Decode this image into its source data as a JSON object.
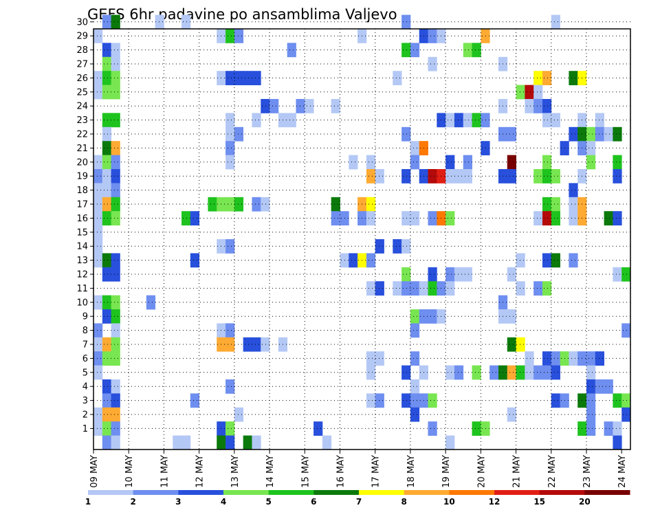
{
  "chart_data": {
    "type": "heatmap",
    "title": "GEFS 6hr padavine po ansamblima Valjevo",
    "xlabel": "",
    "ylabel": "",
    "x_ticks": [
      "09 MAY",
      "10 MAY",
      "11 MAY",
      "12 MAY",
      "13 MAY",
      "14 MAY",
      "15 MAY",
      "16 MAY",
      "17 MAY",
      "18 MAY",
      "19 MAY",
      "20 MAY",
      "21 MAY",
      "22 MAY",
      "23 MAY",
      "24 MAY"
    ],
    "y_ticks": [
      1,
      2,
      3,
      4,
      5,
      6,
      7,
      8,
      9,
      10,
      11,
      12,
      13,
      14,
      15,
      16,
      17,
      18,
      19,
      20,
      21,
      22,
      23,
      24,
      25,
      26,
      27,
      28,
      29,
      30
    ],
    "x_range": [
      0,
      61
    ],
    "y_range": [
      0,
      30
    ],
    "grid": true,
    "colorbar": {
      "labels": [
        "1",
        "2",
        "3",
        "4",
        "5",
        "6",
        "7",
        "8",
        "10",
        "12",
        "15",
        "20"
      ],
      "colors": [
        "#b4c8f5",
        "#6e8ef0",
        "#2850dc",
        "#78e650",
        "#1ec31e",
        "#0b7a0b",
        "#ffff00",
        "#ffaa32",
        "#ff7800",
        "#e11e14",
        "#b40a0a",
        "#780000"
      ]
    },
    "cells": [
      [
        1,
        30,
        2
      ],
      [
        2,
        30,
        6
      ],
      [
        7,
        30,
        1
      ],
      [
        10,
        30,
        1
      ],
      [
        35,
        30,
        2
      ],
      [
        52,
        30,
        1
      ],
      [
        0,
        29,
        1
      ],
      [
        14,
        29,
        1
      ],
      [
        15,
        29,
        5
      ],
      [
        16,
        29,
        2
      ],
      [
        30,
        29,
        1
      ],
      [
        37,
        29,
        3
      ],
      [
        38,
        29,
        2
      ],
      [
        39,
        29,
        1
      ],
      [
        44,
        29,
        8
      ],
      [
        1,
        28,
        3
      ],
      [
        2,
        28,
        1
      ],
      [
        22,
        28,
        2
      ],
      [
        35,
        28,
        5
      ],
      [
        36,
        28,
        2
      ],
      [
        42,
        28,
        4
      ],
      [
        43,
        28,
        5
      ],
      [
        1,
        27,
        4
      ],
      [
        2,
        27,
        1
      ],
      [
        38,
        27,
        1
      ],
      [
        46,
        27,
        1
      ],
      [
        0,
        26,
        1
      ],
      [
        1,
        26,
        5
      ],
      [
        2,
        26,
        4
      ],
      [
        14,
        26,
        1
      ],
      [
        15,
        26,
        3
      ],
      [
        16,
        26,
        3
      ],
      [
        17,
        26,
        3
      ],
      [
        18,
        26,
        3
      ],
      [
        34,
        26,
        1
      ],
      [
        50,
        26,
        7
      ],
      [
        51,
        26,
        8
      ],
      [
        54,
        26,
        6
      ],
      [
        55,
        26,
        7
      ],
      [
        0,
        25,
        1
      ],
      [
        1,
        25,
        4
      ],
      [
        2,
        25,
        4
      ],
      [
        48,
        25,
        4
      ],
      [
        49,
        25,
        11
      ],
      [
        50,
        25,
        1
      ],
      [
        19,
        24,
        3
      ],
      [
        20,
        24,
        2
      ],
      [
        23,
        24,
        2
      ],
      [
        24,
        24,
        1
      ],
      [
        27,
        24,
        1
      ],
      [
        46,
        24,
        1
      ],
      [
        49,
        24,
        1
      ],
      [
        50,
        24,
        2
      ],
      [
        51,
        24,
        3
      ],
      [
        1,
        23,
        5
      ],
      [
        2,
        23,
        5
      ],
      [
        15,
        23,
        1
      ],
      [
        18,
        23,
        1
      ],
      [
        21,
        23,
        1
      ],
      [
        22,
        23,
        1
      ],
      [
        39,
        23,
        3
      ],
      [
        40,
        23,
        1
      ],
      [
        41,
        23,
        3
      ],
      [
        42,
        23,
        1
      ],
      [
        43,
        23,
        5
      ],
      [
        44,
        23,
        2
      ],
      [
        51,
        23,
        1
      ],
      [
        52,
        23,
        1
      ],
      [
        55,
        23,
        1
      ],
      [
        57,
        23,
        1
      ],
      [
        1,
        22,
        1
      ],
      [
        15,
        22,
        1
      ],
      [
        16,
        22,
        2
      ],
      [
        35,
        22,
        2
      ],
      [
        46,
        22,
        2
      ],
      [
        47,
        22,
        2
      ],
      [
        54,
        22,
        3
      ],
      [
        55,
        22,
        6
      ],
      [
        56,
        22,
        4
      ],
      [
        57,
        22,
        2
      ],
      [
        58,
        22,
        1
      ],
      [
        59,
        22,
        6
      ],
      [
        1,
        21,
        6
      ],
      [
        2,
        21,
        8
      ],
      [
        15,
        21,
        2
      ],
      [
        36,
        21,
        1
      ],
      [
        37,
        21,
        9
      ],
      [
        44,
        21,
        3
      ],
      [
        53,
        21,
        3
      ],
      [
        55,
        21,
        2
      ],
      [
        56,
        21,
        1
      ],
      [
        0,
        20,
        1
      ],
      [
        1,
        20,
        4
      ],
      [
        2,
        20,
        2
      ],
      [
        15,
        20,
        1
      ],
      [
        29,
        20,
        1
      ],
      [
        31,
        20,
        1
      ],
      [
        36,
        20,
        2
      ],
      [
        40,
        20,
        3
      ],
      [
        42,
        20,
        2
      ],
      [
        47,
        20,
        12
      ],
      [
        51,
        20,
        4
      ],
      [
        56,
        20,
        4
      ],
      [
        59,
        20,
        5
      ],
      [
        0,
        19,
        2
      ],
      [
        1,
        19,
        1
      ],
      [
        2,
        19,
        3
      ],
      [
        31,
        19,
        8
      ],
      [
        32,
        19,
        1
      ],
      [
        35,
        19,
        3
      ],
      [
        37,
        19,
        3
      ],
      [
        38,
        19,
        11
      ],
      [
        39,
        19,
        10
      ],
      [
        40,
        19,
        1
      ],
      [
        41,
        19,
        1
      ],
      [
        42,
        19,
        1
      ],
      [
        46,
        19,
        3
      ],
      [
        47,
        19,
        3
      ],
      [
        50,
        19,
        4
      ],
      [
        51,
        19,
        5
      ],
      [
        52,
        19,
        4
      ],
      [
        55,
        19,
        1
      ],
      [
        59,
        19,
        3
      ],
      [
        0,
        18,
        1
      ],
      [
        1,
        18,
        1
      ],
      [
        2,
        18,
        2
      ],
      [
        54,
        18,
        3
      ],
      [
        0,
        17,
        1
      ],
      [
        1,
        17,
        8
      ],
      [
        2,
        17,
        5
      ],
      [
        13,
        17,
        5
      ],
      [
        14,
        17,
        4
      ],
      [
        15,
        17,
        4
      ],
      [
        16,
        17,
        5
      ],
      [
        18,
        17,
        2
      ],
      [
        19,
        17,
        1
      ],
      [
        27,
        17,
        6
      ],
      [
        30,
        17,
        8
      ],
      [
        31,
        17,
        7
      ],
      [
        51,
        17,
        5
      ],
      [
        52,
        17,
        4
      ],
      [
        54,
        17,
        1
      ],
      [
        55,
        17,
        8
      ],
      [
        0,
        16,
        1
      ],
      [
        1,
        16,
        5
      ],
      [
        2,
        16,
        4
      ],
      [
        10,
        16,
        5
      ],
      [
        11,
        16,
        3
      ],
      [
        27,
        16,
        2
      ],
      [
        28,
        16,
        2
      ],
      [
        30,
        16,
        2
      ],
      [
        31,
        16,
        1
      ],
      [
        35,
        16,
        1
      ],
      [
        36,
        16,
        1
      ],
      [
        38,
        16,
        2
      ],
      [
        39,
        16,
        9
      ],
      [
        40,
        16,
        4
      ],
      [
        50,
        16,
        1
      ],
      [
        51,
        16,
        11
      ],
      [
        52,
        16,
        5
      ],
      [
        54,
        16,
        1
      ],
      [
        55,
        16,
        8
      ],
      [
        58,
        16,
        6
      ],
      [
        59,
        16,
        3
      ],
      [
        0,
        15,
        1
      ],
      [
        0,
        14,
        1
      ],
      [
        14,
        14,
        1
      ],
      [
        15,
        14,
        2
      ],
      [
        32,
        14,
        3
      ],
      [
        34,
        14,
        3
      ],
      [
        35,
        14,
        1
      ],
      [
        0,
        13,
        1
      ],
      [
        1,
        13,
        6
      ],
      [
        2,
        13,
        3
      ],
      [
        11,
        13,
        3
      ],
      [
        28,
        13,
        1
      ],
      [
        29,
        13,
        3
      ],
      [
        30,
        13,
        7
      ],
      [
        31,
        13,
        2
      ],
      [
        48,
        13,
        1
      ],
      [
        51,
        13,
        3
      ],
      [
        52,
        13,
        6
      ],
      [
        54,
        13,
        2
      ],
      [
        1,
        12,
        3
      ],
      [
        2,
        12,
        3
      ],
      [
        35,
        12,
        4
      ],
      [
        38,
        12,
        3
      ],
      [
        40,
        12,
        2
      ],
      [
        41,
        12,
        1
      ],
      [
        42,
        12,
        1
      ],
      [
        47,
        12,
        1
      ],
      [
        59,
        12,
        1
      ],
      [
        60,
        12,
        5
      ],
      [
        31,
        11,
        1
      ],
      [
        32,
        11,
        3
      ],
      [
        34,
        11,
        1
      ],
      [
        35,
        11,
        2
      ],
      [
        36,
        11,
        2
      ],
      [
        37,
        11,
        1
      ],
      [
        38,
        11,
        5
      ],
      [
        39,
        11,
        2
      ],
      [
        40,
        11,
        1
      ],
      [
        48,
        11,
        1
      ],
      [
        50,
        11,
        2
      ],
      [
        51,
        11,
        4
      ],
      [
        0,
        10,
        1
      ],
      [
        1,
        10,
        5
      ],
      [
        2,
        10,
        4
      ],
      [
        6,
        10,
        2
      ],
      [
        46,
        10,
        2
      ],
      [
        1,
        9,
        3
      ],
      [
        2,
        9,
        5
      ],
      [
        36,
        9,
        4
      ],
      [
        37,
        9,
        2
      ],
      [
        38,
        9,
        2
      ],
      [
        39,
        9,
        1
      ],
      [
        46,
        9,
        1
      ],
      [
        47,
        9,
        1
      ],
      [
        0,
        8,
        2
      ],
      [
        2,
        8,
        1
      ],
      [
        14,
        8,
        1
      ],
      [
        15,
        8,
        2
      ],
      [
        36,
        8,
        2
      ],
      [
        60,
        8,
        2
      ],
      [
        0,
        7,
        1
      ],
      [
        1,
        7,
        8
      ],
      [
        2,
        7,
        4
      ],
      [
        14,
        7,
        8
      ],
      [
        15,
        7,
        8
      ],
      [
        17,
        7,
        3
      ],
      [
        18,
        7,
        3
      ],
      [
        19,
        7,
        1
      ],
      [
        21,
        7,
        1
      ],
      [
        47,
        7,
        6
      ],
      [
        48,
        7,
        7
      ],
      [
        0,
        6,
        2
      ],
      [
        1,
        6,
        4
      ],
      [
        2,
        6,
        4
      ],
      [
        31,
        6,
        1
      ],
      [
        32,
        6,
        1
      ],
      [
        36,
        6,
        2
      ],
      [
        49,
        6,
        1
      ],
      [
        51,
        6,
        3
      ],
      [
        52,
        6,
        2
      ],
      [
        53,
        6,
        4
      ],
      [
        54,
        6,
        1
      ],
      [
        55,
        6,
        2
      ],
      [
        56,
        6,
        2
      ],
      [
        57,
        6,
        3
      ],
      [
        0,
        5,
        1
      ],
      [
        31,
        5,
        1
      ],
      [
        35,
        5,
        3
      ],
      [
        37,
        5,
        1
      ],
      [
        40,
        5,
        1
      ],
      [
        41,
        5,
        2
      ],
      [
        43,
        5,
        4
      ],
      [
        45,
        5,
        2
      ],
      [
        46,
        5,
        6
      ],
      [
        47,
        5,
        8
      ],
      [
        48,
        5,
        5
      ],
      [
        49,
        5,
        1
      ],
      [
        50,
        5,
        2
      ],
      [
        51,
        5,
        2
      ],
      [
        52,
        5,
        3
      ],
      [
        56,
        5,
        1
      ],
      [
        1,
        4,
        3
      ],
      [
        2,
        4,
        1
      ],
      [
        15,
        4,
        2
      ],
      [
        36,
        4,
        1
      ],
      [
        56,
        4,
        3
      ],
      [
        57,
        4,
        2
      ],
      [
        58,
        4,
        2
      ],
      [
        1,
        3,
        2
      ],
      [
        2,
        3,
        3
      ],
      [
        11,
        3,
        2
      ],
      [
        31,
        3,
        1
      ],
      [
        32,
        3,
        2
      ],
      [
        35,
        3,
        3
      ],
      [
        36,
        3,
        2
      ],
      [
        37,
        3,
        2
      ],
      [
        38,
        3,
        4
      ],
      [
        52,
        3,
        3
      ],
      [
        53,
        3,
        2
      ],
      [
        55,
        3,
        6
      ],
      [
        56,
        3,
        2
      ],
      [
        59,
        3,
        5
      ],
      [
        60,
        3,
        4
      ],
      [
        0,
        2,
        1
      ],
      [
        1,
        2,
        8
      ],
      [
        2,
        2,
        8
      ],
      [
        16,
        2,
        1
      ],
      [
        36,
        2,
        3
      ],
      [
        47,
        2,
        1
      ],
      [
        56,
        2,
        2
      ],
      [
        60,
        2,
        3
      ],
      [
        0,
        1,
        1
      ],
      [
        1,
        1,
        4
      ],
      [
        2,
        1,
        2
      ],
      [
        14,
        1,
        3
      ],
      [
        15,
        1,
        4
      ],
      [
        25,
        1,
        3
      ],
      [
        38,
        1,
        2
      ],
      [
        43,
        1,
        5
      ],
      [
        44,
        1,
        4
      ],
      [
        55,
        1,
        5
      ],
      [
        56,
        1,
        2
      ],
      [
        58,
        1,
        2
      ],
      [
        59,
        1,
        1
      ],
      [
        1,
        0,
        2
      ],
      [
        2,
        0,
        1
      ],
      [
        9,
        0,
        1
      ],
      [
        10,
        0,
        1
      ],
      [
        14,
        0,
        6
      ],
      [
        15,
        0,
        3
      ],
      [
        17,
        0,
        6
      ],
      [
        18,
        0,
        1
      ],
      [
        26,
        0,
        1
      ],
      [
        40,
        0,
        1
      ],
      [
        59,
        0,
        3
      ]
    ]
  }
}
